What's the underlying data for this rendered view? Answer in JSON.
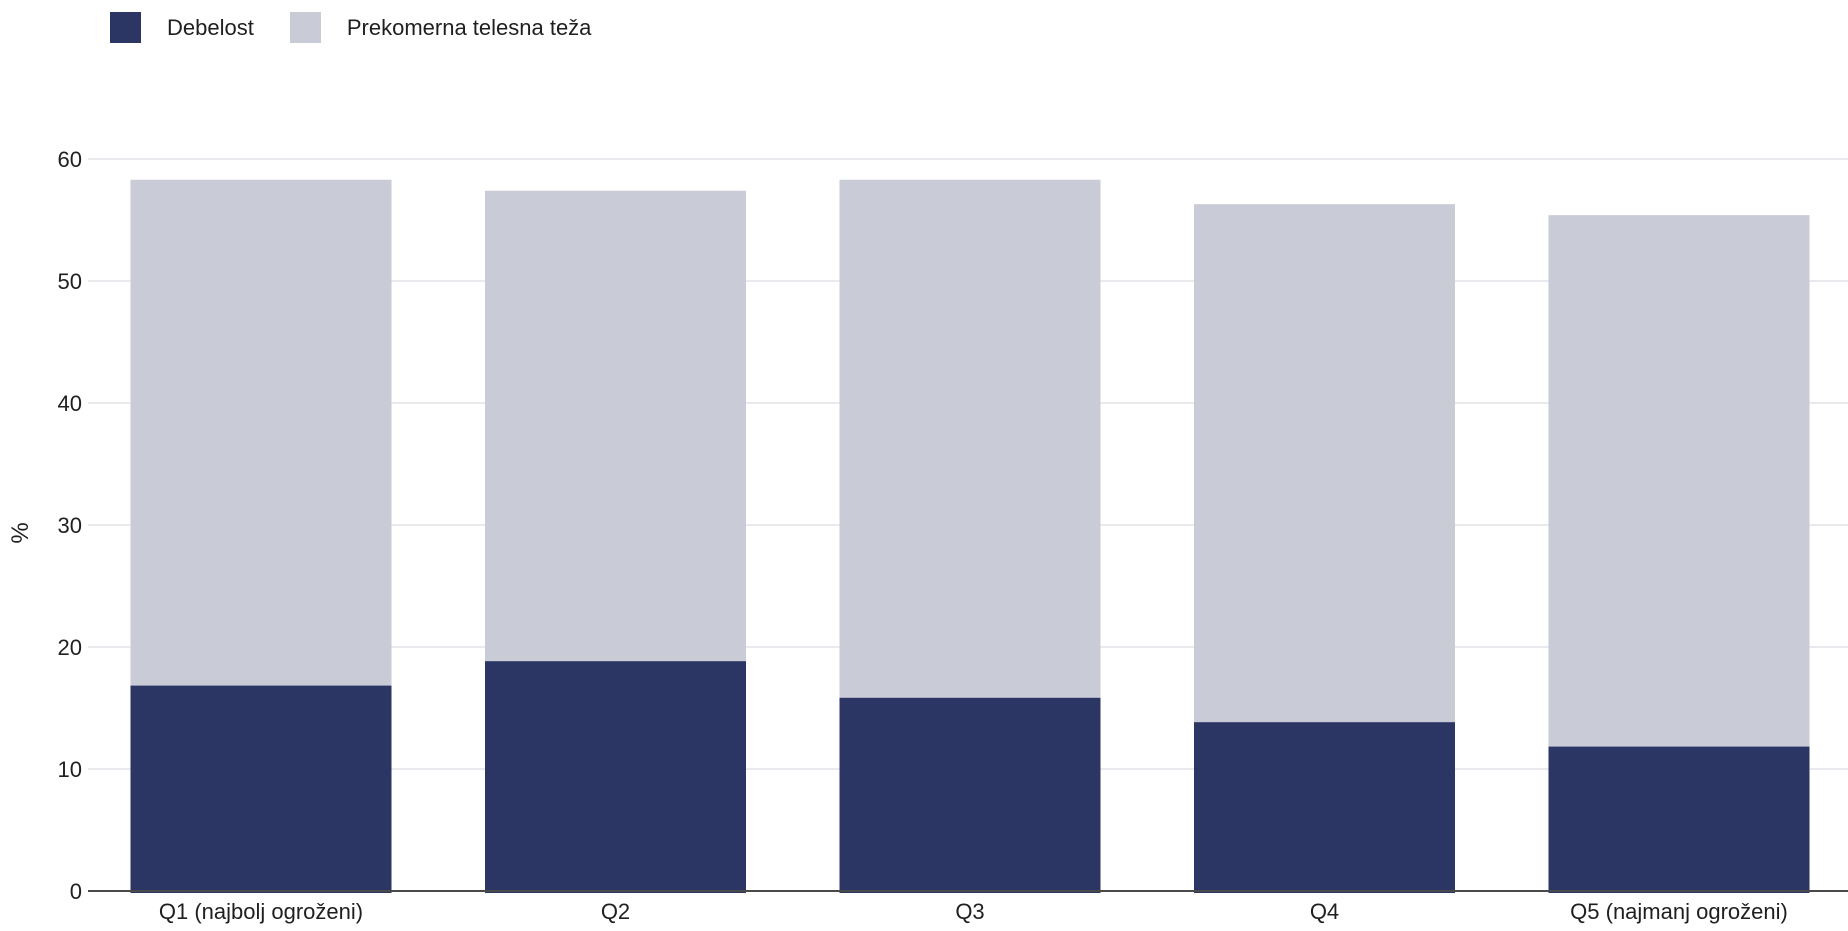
{
  "chart_data": {
    "type": "bar",
    "stacked": true,
    "categories": [
      "Q1 (najbolj ogroženi)",
      "Q2",
      "Q3",
      "Q4",
      "Q5 (najmanj ogroženi)"
    ],
    "series": [
      {
        "name": "Debelost",
        "color": "#2b3664",
        "values": [
          17,
          19,
          16,
          14,
          12
        ]
      },
      {
        "name": "Prekomerna telesna teža",
        "color": "#c9cbd7",
        "values": [
          41.3,
          38.4,
          42.3,
          42.3,
          43.4
        ]
      }
    ],
    "ylabel": "%",
    "xlabel": "",
    "ylim": [
      0,
      60
    ],
    "yticks": [
      0,
      10,
      20,
      30,
      40,
      50,
      60
    ],
    "grid": true,
    "legend_position": "top-left"
  }
}
